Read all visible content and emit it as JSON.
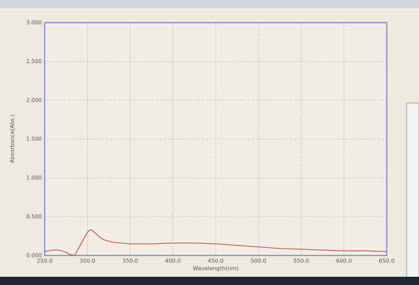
{
  "chart_data": {
    "type": "line",
    "x_label": "Wavelength(nm)",
    "y_label": "Absorbance(Abs.)",
    "xlim": [
      250,
      650
    ],
    "ylim": [
      0,
      3
    ],
    "xticks": [
      {
        "value": 250,
        "label": "250.0"
      },
      {
        "value": 300,
        "label": "300.0"
      },
      {
        "value": 350,
        "label": "350.0"
      },
      {
        "value": 400,
        "label": "400.0"
      },
      {
        "value": 450,
        "label": "450.0"
      },
      {
        "value": 500,
        "label": "500.0"
      },
      {
        "value": 550,
        "label": "550.0"
      },
      {
        "value": 600,
        "label": "600.0"
      },
      {
        "value": 650,
        "label": "650.0"
      }
    ],
    "yticks": [
      {
        "value": 0,
        "label": "0.000"
      },
      {
        "value": 0.5,
        "label": "0.500"
      },
      {
        "value": 1,
        "label": "1.000"
      },
      {
        "value": 1.5,
        "label": "1.500"
      },
      {
        "value": 2,
        "label": "2.000"
      },
      {
        "value": 2.5,
        "label": "2.500"
      },
      {
        "value": 3,
        "label": "3.000"
      }
    ],
    "grid": true,
    "series": [
      {
        "color": "#c0504d",
        "x": [
          250,
          255,
          260,
          265,
          270,
          275,
          280,
          285,
          290,
          295,
          300,
          303,
          306,
          310,
          315,
          320,
          330,
          340,
          350,
          375,
          400,
          425,
          450,
          475,
          500,
          525,
          550,
          575,
          600,
          625,
          650
        ],
        "values": [
          0.05,
          0.06,
          0.07,
          0.07,
          0.06,
          0.04,
          0.01,
          0.0,
          0.1,
          0.2,
          0.3,
          0.33,
          0.32,
          0.28,
          0.23,
          0.2,
          0.17,
          0.16,
          0.15,
          0.15,
          0.16,
          0.16,
          0.15,
          0.13,
          0.11,
          0.09,
          0.08,
          0.07,
          0.06,
          0.06,
          0.05
        ]
      }
    ]
  }
}
